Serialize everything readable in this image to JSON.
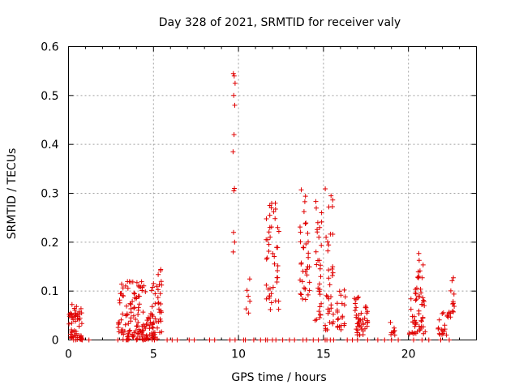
{
  "chart_data": {
    "type": "scatter",
    "title": "Day 328 of 2021, SRMTID for receiver valy",
    "xlabel": "GPS time / hours",
    "ylabel": "SRMTID / TECUs",
    "xlim": [
      0,
      24
    ],
    "ylim": [
      0,
      0.6
    ],
    "x_ticks": [
      0,
      5,
      10,
      15,
      20
    ],
    "x_tick_labels": [
      "0",
      "5",
      "10",
      "15",
      "20"
    ],
    "y_ticks": [
      0,
      0.1,
      0.2,
      0.3,
      0.4,
      0.5,
      0.6
    ],
    "y_tick_labels": [
      "0",
      "0.1",
      "0.2",
      "0.3",
      "0.4",
      "0.5",
      "0.6"
    ],
    "grid": true,
    "marker": "+",
    "color": "#e00000",
    "clusters": [
      {
        "x_range": [
          0.0,
          0.8
        ],
        "y_range": [
          0.0,
          0.08
        ],
        "count": 55
      },
      {
        "x_range": [
          2.9,
          5.5
        ],
        "y_range": [
          0.0,
          0.12
        ],
        "count": 170
      },
      {
        "x_range": [
          5.2,
          5.5
        ],
        "y_range": [
          0.1,
          0.15
        ],
        "count": 6
      },
      {
        "x_range": [
          10.4,
          10.7
        ],
        "y_range": [
          0.05,
          0.13
        ],
        "count": 6
      },
      {
        "x_range": [
          11.6,
          12.4
        ],
        "y_range": [
          0.06,
          0.3
        ],
        "count": 45
      },
      {
        "x_range": [
          13.6,
          14.2
        ],
        "y_range": [
          0.08,
          0.31
        ],
        "count": 35
      },
      {
        "x_range": [
          14.5,
          14.9
        ],
        "y_range": [
          0.04,
          0.29
        ],
        "count": 30
      },
      {
        "x_range": [
          15.1,
          15.6
        ],
        "y_range": [
          0.02,
          0.32
        ],
        "count": 35
      },
      {
        "x_range": [
          15.8,
          16.3
        ],
        "y_range": [
          0.02,
          0.11
        ],
        "count": 20
      },
      {
        "x_range": [
          16.8,
          17.6
        ],
        "y_range": [
          0.01,
          0.09
        ],
        "count": 45
      },
      {
        "x_range": [
          18.9,
          19.2
        ],
        "y_range": [
          0.01,
          0.04
        ],
        "count": 8
      },
      {
        "x_range": [
          20.0,
          21.0
        ],
        "y_range": [
          0.01,
          0.1
        ],
        "count": 45
      },
      {
        "x_range": [
          20.4,
          20.9
        ],
        "y_range": [
          0.1,
          0.19
        ],
        "count": 12
      },
      {
        "x_range": [
          21.7,
          22.4
        ],
        "y_range": [
          0.01,
          0.06
        ],
        "count": 20
      },
      {
        "x_range": [
          22.4,
          22.7
        ],
        "y_range": [
          0.04,
          0.15
        ],
        "count": 12
      }
    ],
    "spike_points": [
      {
        "x": 9.7,
        "y": 0.545
      },
      {
        "x": 9.75,
        "y": 0.54
      },
      {
        "x": 9.8,
        "y": 0.525
      },
      {
        "x": 9.72,
        "y": 0.5
      },
      {
        "x": 9.78,
        "y": 0.48
      },
      {
        "x": 9.74,
        "y": 0.42
      },
      {
        "x": 9.68,
        "y": 0.385
      },
      {
        "x": 9.76,
        "y": 0.31
      },
      {
        "x": 9.73,
        "y": 0.305
      },
      {
        "x": 9.71,
        "y": 0.22
      },
      {
        "x": 9.77,
        "y": 0.2
      },
      {
        "x": 9.69,
        "y": 0.18
      }
    ],
    "zero_points_x": [
      0.3,
      0.8,
      1.2,
      2.9,
      3.5,
      4.0,
      4.4,
      5.8,
      6.1,
      6.4,
      7.1,
      7.4,
      8.3,
      8.6,
      9.5,
      9.8,
      10.3,
      10.4,
      10.9,
      11.3,
      11.6,
      11.7,
      12.0,
      12.2,
      12.6,
      13.0,
      13.3,
      13.8,
      14.0,
      14.4,
      14.7,
      15.1,
      15.2,
      15.4,
      15.6,
      16.4,
      16.7,
      17.0,
      17.6,
      18.2,
      18.6,
      19.0,
      19.4,
      20.3,
      20.8,
      21.2,
      21.9,
      22.4
    ]
  }
}
